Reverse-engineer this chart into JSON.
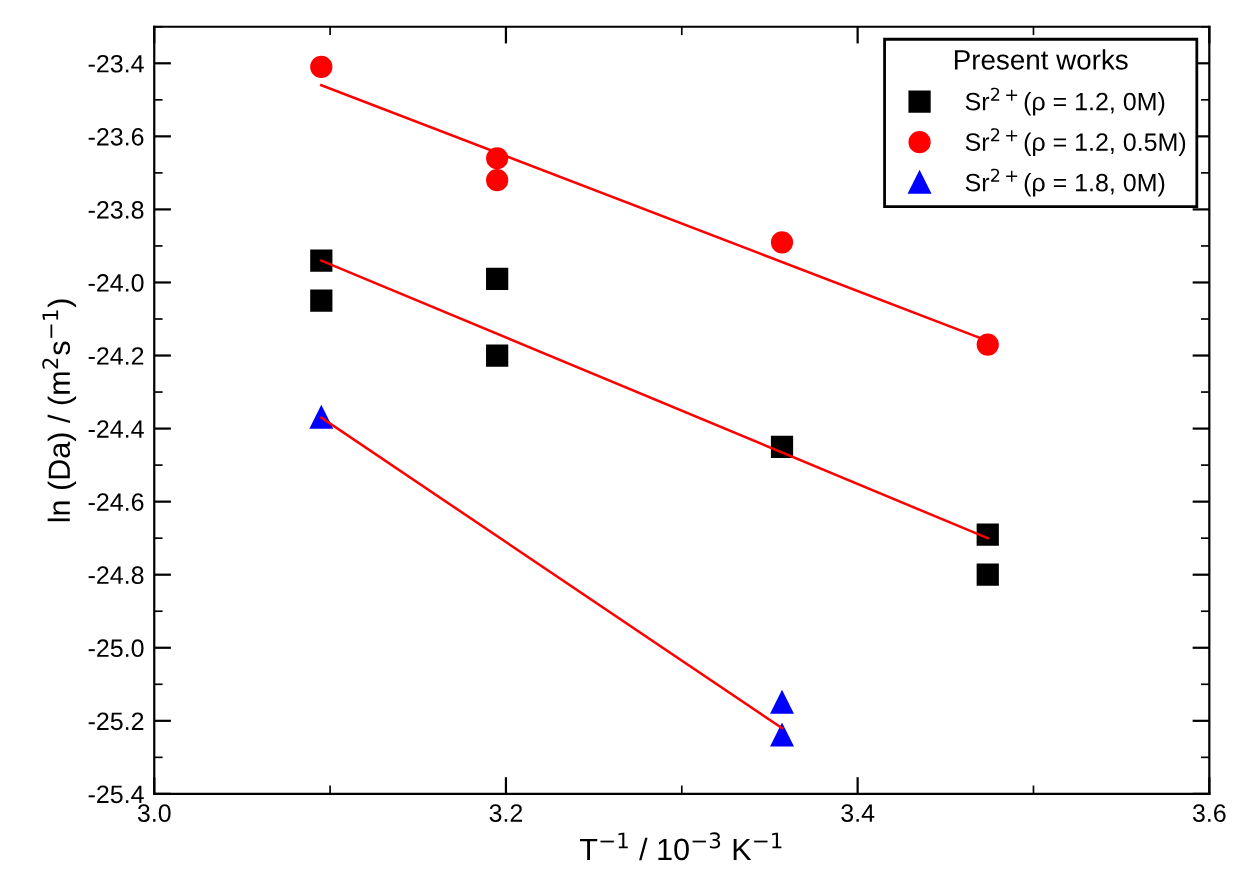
{
  "chart_data": {
    "type": "scatter",
    "xlabel": "T$^{−1}$ / 10$^{−3}$ K$^{−1}$",
    "ylabel": "ln (Da) / (m$^{2}$s$^{−1}$)",
    "legend_title": "Present works",
    "legend": "top right",
    "grid": false,
    "xlim": [
      3.0,
      3.6
    ],
    "xticks": [
      {
        "value": 3,
        "label": "3.0"
      },
      3.2,
      3.4,
      3.6
    ],
    "ylim": [
      -25.4,
      -23.3
    ],
    "yticks": [
      -25.4,
      -25.2,
      {
        "value": -25,
        "label": "-25.0"
      },
      -24.8,
      -24.6,
      -24.4,
      -24.2,
      {
        "value": -24,
        "label": "-24.0"
      },
      -23.8,
      -23.6,
      -23.4
    ],
    "series": [
      {
        "name": "Sr$^{2+}$(ρ = 1.2, 0M)",
        "color": "#000000",
        "marker": "square",
        "x": [
          3.095,
          3.095,
          3.195,
          3.195,
          3.357,
          3.474,
          3.474
        ],
        "values": [
          -23.94,
          -24.05,
          -23.99,
          -24.2,
          -24.45,
          -24.69,
          -24.8
        ]
      },
      {
        "name": "Sr$^{2+}$(ρ = 1.2, 0.5M)",
        "color": "#ff0000",
        "marker": "circle",
        "x": [
          3.095,
          3.195,
          3.195,
          3.357,
          3.474
        ],
        "values": [
          -23.41,
          -23.66,
          -23.72,
          -23.89,
          -24.17
        ]
      },
      {
        "name": "Sr$^{2+}$(ρ = 1.8, 0M)",
        "color": "#0000ff",
        "marker": "triangle",
        "x": [
          3.095,
          3.357,
          3.357
        ],
        "values": [
          -24.37,
          -25.15,
          -25.24
        ]
      },
      {
        "type": "line",
        "color": "#ff0000",
        "marker": "none",
        "x": [
          3.095,
          3.474
        ],
        "values": [
          -23.46,
          -24.16
        ]
      },
      {
        "type": "line",
        "color": "#ff0000",
        "marker": "none",
        "x": [
          3.095,
          3.474
        ],
        "values": [
          -23.94,
          -24.7
        ]
      },
      {
        "type": "line",
        "color": "#ff0000",
        "marker": "none",
        "x": [
          3.095,
          3.357
        ],
        "values": [
          -24.37,
          -25.22
        ]
      }
    ]
  }
}
